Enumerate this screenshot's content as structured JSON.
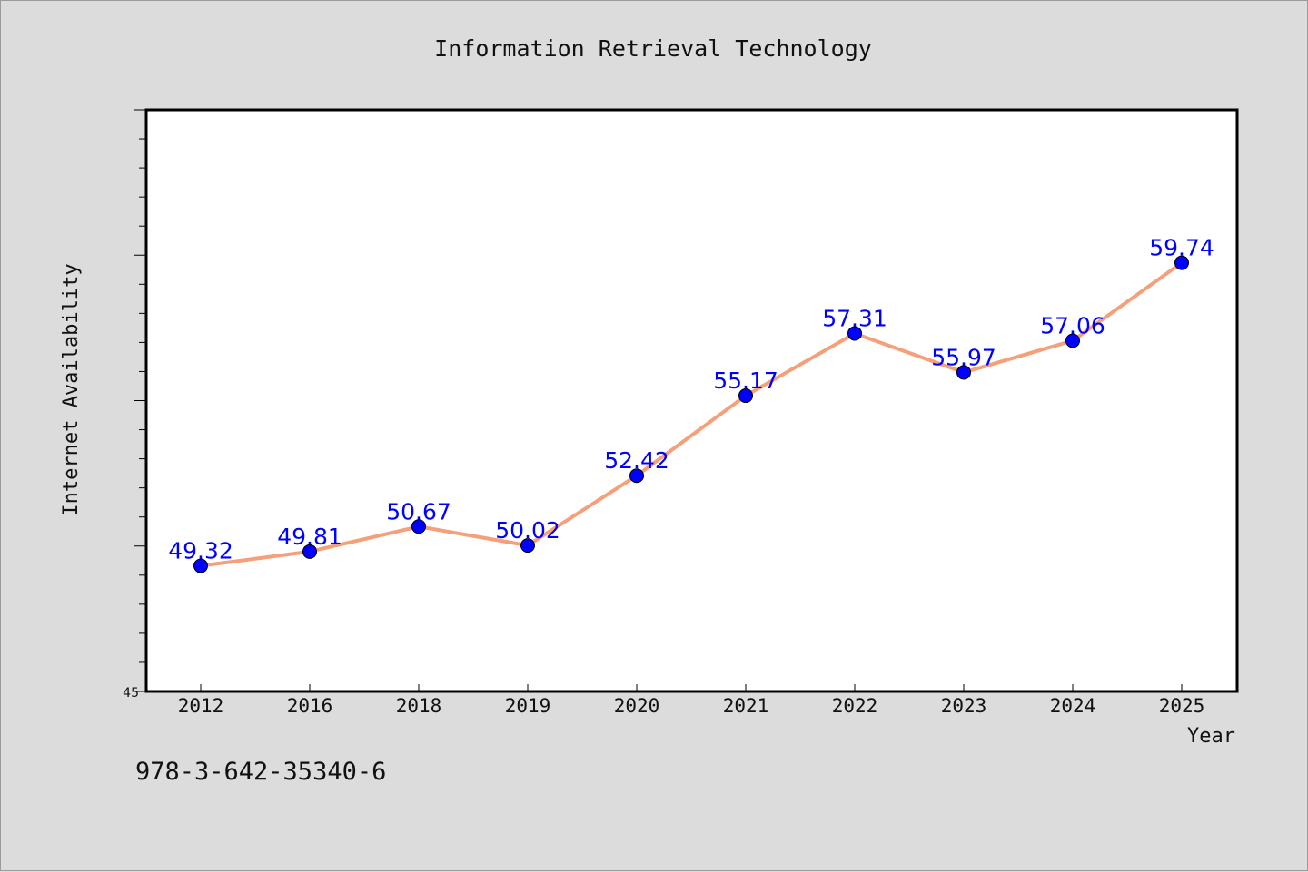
{
  "chart_data": {
    "type": "line",
    "title": "Information Retrieval Technology",
    "xlabel": "Year",
    "ylabel": "Internet Availability",
    "categories": [
      "2012",
      "2016",
      "2018",
      "2019",
      "2020",
      "2021",
      "2022",
      "2023",
      "2024",
      "2025"
    ],
    "series": [
      {
        "values": [
          49.32,
          49.81,
          50.67,
          50.02,
          52.42,
          55.17,
          57.31,
          55.97,
          57.06,
          59.74
        ],
        "labels": [
          "49.32",
          "49.81",
          "50.67",
          "50.02",
          "52.42",
          "55.17",
          "57.31",
          "55.97",
          "57.06",
          "59.74"
        ],
        "line_color": "#f4a07a",
        "marker_color": "#0000ff"
      }
    ],
    "ylim": [
      45,
      65
    ],
    "y_tick_labels": [
      {
        "value": 45,
        "label": "45"
      }
    ],
    "grid": false,
    "legend": "none"
  },
  "footer": {
    "text": "978-3-642-35340-6"
  }
}
